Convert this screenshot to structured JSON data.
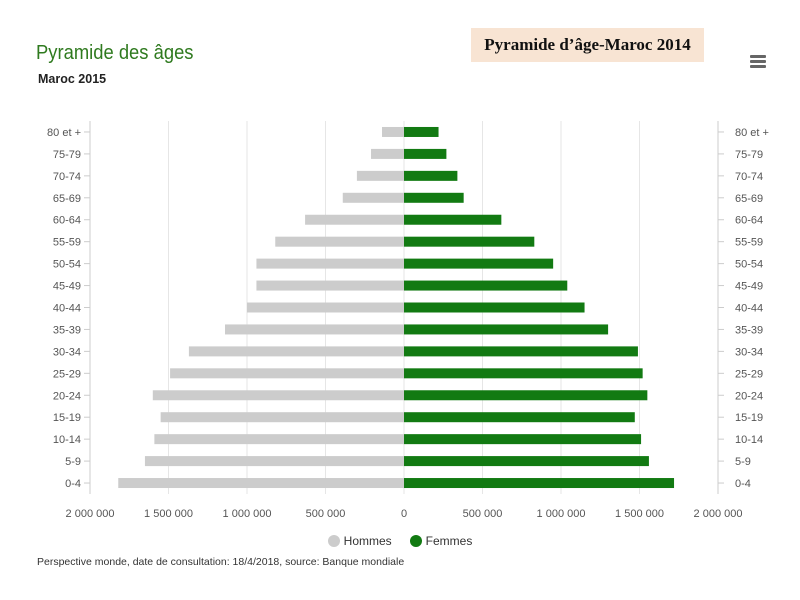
{
  "header": {
    "title": "Pyramide des âges",
    "subtitle": "Maroc 2015",
    "banner": "Pyramide d’âge-Maroc 2014"
  },
  "menu_icon": "hamburger-menu-icon",
  "legend": {
    "men_label": "Hommes",
    "women_label": "Femmes"
  },
  "footnote": "Perspective monde, date de consultation: 18/4/2018, source: Banque mondiale",
  "colors": {
    "men": "#cccccc",
    "women": "#127a12",
    "title": "#2f7a1f",
    "banner_bg": "#f8e4d3"
  },
  "chart_data": {
    "type": "bar",
    "orientation": "horizontal-diverging",
    "categories": [
      "80 et +",
      "75-79",
      "70-74",
      "65-69",
      "60-64",
      "55-59",
      "50-54",
      "45-49",
      "40-44",
      "35-39",
      "30-34",
      "25-29",
      "20-24",
      "15-19",
      "10-14",
      "5-9",
      "0-4"
    ],
    "series": [
      {
        "name": "Hommes",
        "side": "left",
        "values": [
          140000,
          210000,
          300000,
          390000,
          630000,
          820000,
          940000,
          940000,
          1000000,
          1140000,
          1370000,
          1490000,
          1600000,
          1550000,
          1590000,
          1650000,
          1820000
        ]
      },
      {
        "name": "Femmes",
        "side": "right",
        "values": [
          220000,
          270000,
          340000,
          380000,
          620000,
          830000,
          950000,
          1040000,
          1150000,
          1300000,
          1490000,
          1520000,
          1550000,
          1470000,
          1510000,
          1560000,
          1720000
        ]
      }
    ],
    "xticks": [
      "2 000 000",
      "1 500 000",
      "1 000 000",
      "500 000",
      "0",
      "500 000",
      "1 000 000",
      "1 500 000",
      "2 000 000"
    ],
    "xlim": [
      -2000000,
      2000000
    ],
    "grid": true,
    "legend_position": "bottom"
  }
}
